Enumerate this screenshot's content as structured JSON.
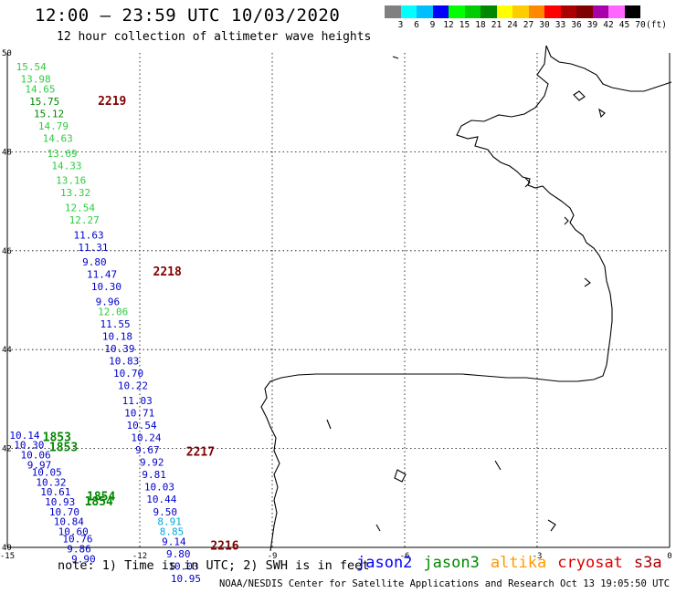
{
  "header": {
    "title": "12:00 – 23:59 UTC 10/03/2020",
    "subtitle": "12 hour collection of altimeter wave heights"
  },
  "colorbar": {
    "colors": [
      "#808080",
      "#00ffff",
      "#00bfff",
      "#0000ff",
      "#00ff00",
      "#00cc00",
      "#008800",
      "#ffff00",
      "#ffcc00",
      "#ff8800",
      "#ff0000",
      "#aa0000",
      "#800000",
      "#aa00aa",
      "#ff66ff",
      "#000000"
    ],
    "labels": [
      "3",
      "6",
      "9",
      "12",
      "15",
      "18",
      "21",
      "24",
      "27",
      "30",
      "33",
      "36",
      "39",
      "42",
      "45",
      "70",
      "(ft)"
    ]
  },
  "map": {
    "lon_range": [
      -15,
      0
    ],
    "lat_range": [
      40,
      50
    ],
    "lon_ticks": [
      "-15",
      "-12",
      "-9",
      "-6",
      "-3",
      "0"
    ],
    "lat_ticks": [
      "50",
      "48",
      "46",
      "44",
      "42",
      "40"
    ],
    "colors": {
      "jason2": "#0000cc",
      "jason3": "#008800",
      "saral": "#2ecc40",
      "cryosat": "#cc0000",
      "s3a": "#800000",
      "light": "#00aadd"
    },
    "time_labels": [
      {
        "text": "2219",
        "lon": -12.95,
        "lat": 48.95,
        "sat": "s3a"
      },
      {
        "text": "2218",
        "lon": -11.7,
        "lat": 45.5,
        "sat": "s3a"
      },
      {
        "text": "2217",
        "lon": -10.95,
        "lat": 41.85,
        "sat": "s3a"
      },
      {
        "text": "2216",
        "lon": -10.4,
        "lat": 39.95,
        "sat": "s3a"
      },
      {
        "text": "1853",
        "lon": -14.2,
        "lat": 42.15,
        "sat": "jason3"
      },
      {
        "text": "1853",
        "lon": -14.05,
        "lat": 41.95,
        "sat": "jason3"
      },
      {
        "text": "1854",
        "lon": -13.2,
        "lat": 40.95,
        "sat": "jason3"
      },
      {
        "text": "1854",
        "lon": -13.25,
        "lat": 40.85,
        "sat": "jason3"
      }
    ],
    "s3a_track": [
      {
        "v": "15.54",
        "lon": -14.8,
        "lat": 49.65,
        "sat": "saral"
      },
      {
        "v": "13.98",
        "lon": -14.7,
        "lat": 49.4,
        "sat": "saral"
      },
      {
        "v": "14.65",
        "lon": -14.6,
        "lat": 49.2,
        "sat": "saral"
      },
      {
        "v": "15.75",
        "lon": -14.5,
        "lat": 48.95,
        "sat": "jason3"
      },
      {
        "v": "15.12",
        "lon": -14.4,
        "lat": 48.7,
        "sat": "jason3"
      },
      {
        "v": "14.79",
        "lon": -14.3,
        "lat": 48.45,
        "sat": "saral"
      },
      {
        "v": "14.63",
        "lon": -14.2,
        "lat": 48.2,
        "sat": "saral"
      },
      {
        "v": "13.69",
        "lon": -14.1,
        "lat": 47.9,
        "sat": "saral"
      },
      {
        "v": "14.33",
        "lon": -14.0,
        "lat": 47.65,
        "sat": "saral"
      },
      {
        "v": "13.16",
        "lon": -13.9,
        "lat": 47.35,
        "sat": "saral"
      },
      {
        "v": "13.32",
        "lon": -13.8,
        "lat": 47.1,
        "sat": "saral"
      },
      {
        "v": "12.54",
        "lon": -13.7,
        "lat": 46.8,
        "sat": "saral"
      },
      {
        "v": "12.27",
        "lon": -13.6,
        "lat": 46.55,
        "sat": "saral"
      },
      {
        "v": "11.63",
        "lon": -13.5,
        "lat": 46.25,
        "sat": "jason2"
      },
      {
        "v": "11.31",
        "lon": -13.4,
        "lat": 46.0,
        "sat": "jason2"
      },
      {
        "v": "9.80",
        "lon": -13.3,
        "lat": 45.7,
        "sat": "jason2"
      },
      {
        "v": "11.47",
        "lon": -13.2,
        "lat": 45.45,
        "sat": "jason2"
      },
      {
        "v": "10.30",
        "lon": -13.1,
        "lat": 45.2,
        "sat": "jason2"
      },
      {
        "v": "9.96",
        "lon": -13.0,
        "lat": 44.9,
        "sat": "jason2"
      },
      {
        "v": "12.06",
        "lon": -12.95,
        "lat": 44.7,
        "sat": "saral"
      },
      {
        "v": "11.55",
        "lon": -12.9,
        "lat": 44.45,
        "sat": "jason2"
      },
      {
        "v": "10.18",
        "lon": -12.85,
        "lat": 44.2,
        "sat": "jason2"
      },
      {
        "v": "10.39",
        "lon": -12.8,
        "lat": 43.95,
        "sat": "jason2"
      },
      {
        "v": "10.83",
        "lon": -12.7,
        "lat": 43.7,
        "sat": "jason2"
      },
      {
        "v": "10.70",
        "lon": -12.6,
        "lat": 43.45,
        "sat": "jason2"
      },
      {
        "v": "10.22",
        "lon": -12.5,
        "lat": 43.2,
        "sat": "jason2"
      },
      {
        "v": "11.03",
        "lon": -12.4,
        "lat": 42.9,
        "sat": "jason2"
      },
      {
        "v": "10.71",
        "lon": -12.35,
        "lat": 42.65,
        "sat": "jason2"
      },
      {
        "v": "10.54",
        "lon": -12.3,
        "lat": 42.4,
        "sat": "jason2"
      },
      {
        "v": "10.24",
        "lon": -12.2,
        "lat": 42.15,
        "sat": "jason2"
      },
      {
        "v": "9.67",
        "lon": -12.1,
        "lat": 41.9,
        "sat": "jason2"
      },
      {
        "v": "9.92",
        "lon": -12.0,
        "lat": 41.65,
        "sat": "jason2"
      },
      {
        "v": "9.81",
        "lon": -11.95,
        "lat": 41.4,
        "sat": "jason2"
      },
      {
        "v": "10.03",
        "lon": -11.9,
        "lat": 41.15,
        "sat": "jason2"
      },
      {
        "v": "10.44",
        "lon": -11.85,
        "lat": 40.9,
        "sat": "jason2"
      },
      {
        "v": "9.50",
        "lon": -11.7,
        "lat": 40.65,
        "sat": "jason2"
      },
      {
        "v": "8.91",
        "lon": -11.6,
        "lat": 40.45,
        "sat": "light"
      },
      {
        "v": "8.85",
        "lon": -11.55,
        "lat": 40.25,
        "sat": "light"
      },
      {
        "v": "9.14",
        "lon": -11.5,
        "lat": 40.05,
        "sat": "jason2"
      },
      {
        "v": "9.80",
        "lon": -11.4,
        "lat": 39.8,
        "sat": "jason2"
      },
      {
        "v": "10.03",
        "lon": -11.35,
        "lat": 39.55,
        "sat": "jason2"
      },
      {
        "v": "10.95",
        "lon": -11.3,
        "lat": 39.3,
        "sat": "jason2"
      }
    ],
    "jason_track": [
      {
        "v": "10.14",
        "lon": -14.95,
        "lat": 42.2,
        "sat": "jason2"
      },
      {
        "v": "10.30",
        "lon": -14.85,
        "lat": 42.0,
        "sat": "jason2"
      },
      {
        "v": "10.06",
        "lon": -14.7,
        "lat": 41.8,
        "sat": "jason2"
      },
      {
        "v": "9.97",
        "lon": -14.55,
        "lat": 41.6,
        "sat": "jason2"
      },
      {
        "v": "10.05",
        "lon": -14.45,
        "lat": 41.45,
        "sat": "jason2"
      },
      {
        "v": "10.32",
        "lon": -14.35,
        "lat": 41.25,
        "sat": "jason2"
      },
      {
        "v": "10.61",
        "lon": -14.25,
        "lat": 41.05,
        "sat": "jason2"
      },
      {
        "v": "10.93",
        "lon": -14.15,
        "lat": 40.85,
        "sat": "jason2"
      },
      {
        "v": "10.70",
        "lon": -14.05,
        "lat": 40.65,
        "sat": "jason2"
      },
      {
        "v": "10.84",
        "lon": -13.95,
        "lat": 40.45,
        "sat": "jason2"
      },
      {
        "v": "10.60",
        "lon": -13.85,
        "lat": 40.25,
        "sat": "jason2"
      },
      {
        "v": "10.76",
        "lon": -13.75,
        "lat": 40.1,
        "sat": "jason2"
      },
      {
        "v": "9.86",
        "lon": -13.65,
        "lat": 39.9,
        "sat": "jason2"
      },
      {
        "v": "9.90",
        "lon": -13.55,
        "lat": 39.7,
        "sat": "jason2"
      }
    ]
  },
  "footer": {
    "note": "note: 1) Time is in UTC; 2) SWH is in feet",
    "legend": [
      {
        "name": "jason2",
        "color": "#0000ff"
      },
      {
        "name": "jason3",
        "color": "#008800"
      },
      {
        "name": "altika",
        "color": "#ff9900"
      },
      {
        "name": "cryosat",
        "color": "#dd0000"
      },
      {
        "name": "s3a",
        "color": "#aa0000"
      }
    ],
    "credit": "NOAA/NESDIS Center for Satellite Applications and Research   Oct 13 19:05:50 UTC 2020"
  }
}
